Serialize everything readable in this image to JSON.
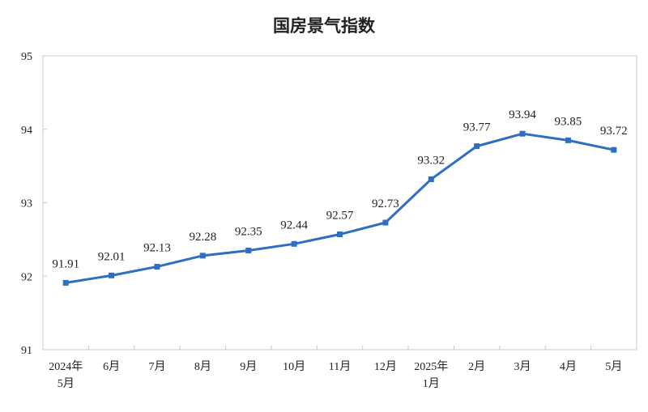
{
  "chart_data": {
    "type": "line",
    "title": "国房景气指数",
    "categories": [
      [
        "2024年",
        "5月"
      ],
      [
        "6月"
      ],
      [
        "7月"
      ],
      [
        "8月"
      ],
      [
        "9月"
      ],
      [
        "10月"
      ],
      [
        "11月"
      ],
      [
        "12月"
      ],
      [
        "2025年",
        "1月"
      ],
      [
        "2月"
      ],
      [
        "3月"
      ],
      [
        "4月"
      ],
      [
        "5月"
      ]
    ],
    "series": [
      {
        "values": [
          91.91,
          92.01,
          92.13,
          92.28,
          92.35,
          92.44,
          92.57,
          92.73,
          93.32,
          93.77,
          93.94,
          93.85,
          93.72
        ],
        "color": "#2e6fc0"
      }
    ],
    "value_labels": [
      "91.91",
      "92.01",
      "92.13",
      "92.28",
      "92.35",
      "92.44",
      "92.57",
      "92.73",
      "93.32",
      "93.77",
      "93.94",
      "93.85",
      "93.72"
    ],
    "ylim": [
      91,
      95
    ],
    "yticks": [
      "91",
      "92",
      "93",
      "94",
      "95"
    ],
    "grid": false,
    "marker": "square"
  }
}
